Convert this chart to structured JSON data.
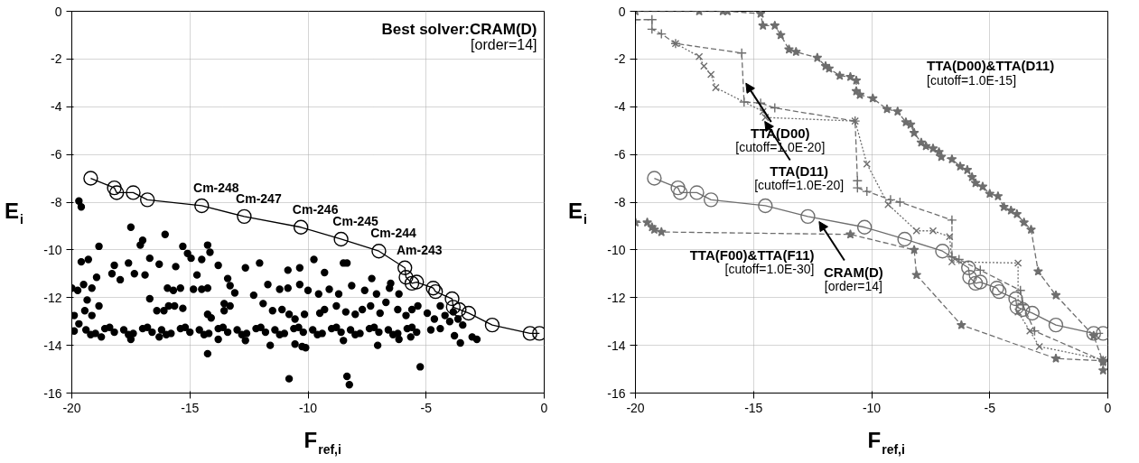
{
  "chart_data": [
    {
      "type": "scatter",
      "xlabel": "F$_{ref,i}$",
      "ylabel": "E$_{i}$",
      "xlim": [
        -20,
        0
      ],
      "ylim": [
        -16,
        0
      ],
      "xticks": [
        -20,
        -15,
        -10,
        -5,
        0
      ],
      "yticks": [
        -16,
        -14,
        -12,
        -10,
        -8,
        -6,
        -4,
        -2,
        0
      ],
      "grid": true,
      "annotations": [
        "Best solver:CRAM(D)\n[order=14]",
        {
          "text": "Cm-248",
          "x": -14.5,
          "y": -8.15
        },
        {
          "text": "Cm-247",
          "x": -12.7,
          "y": -8.6
        },
        {
          "text": "Cm-246",
          "x": -10.3,
          "y": -9.05
        },
        {
          "text": "Cm-245",
          "x": -8.6,
          "y": -9.55
        },
        {
          "text": "Cm-244",
          "x": -7.0,
          "y": -10.05
        },
        {
          "text": "Am-243",
          "x": -5.9,
          "y": -10.75
        }
      ],
      "series": [
        {
          "type": "scatter",
          "color": "#000000",
          "marker": "circle",
          "x": [
            -19.7,
            -19.6,
            -17.5,
            -16.05,
            -18.85,
            -17.0,
            -17.1,
            -15.3,
            -14.25,
            -14.15,
            -9.75,
            -8.5,
            -8.35,
            -19.6,
            -19.3,
            -18.2,
            -17.6,
            -16.7,
            -16.3,
            -15.6,
            -15.1,
            -14.95,
            -14.5,
            -13.8,
            -12.65,
            -12.05,
            -10.85,
            -10.35,
            -9.3,
            -7.3,
            -6.5,
            -20,
            -19.75,
            -19.5,
            -19.15,
            -18.95,
            -18.3,
            -17.95,
            -17.35,
            -16.9,
            -15.95,
            -15.7,
            -15.4,
            -14.7,
            -14.85,
            -14.5,
            -14.25,
            -13.4,
            -13.3,
            -13.1,
            -12.3,
            -11.7,
            -11.2,
            -10.85,
            -10.35,
            -10.0,
            -9.55,
            -9.1,
            -8.7,
            -8.15,
            -7.6,
            -7.1,
            -6.55,
            -6.15,
            -19.35,
            -18.85,
            -19.45,
            -19.15,
            -19.9,
            -19.7,
            -16.7,
            -16.4,
            -16.1,
            -15.9,
            -15.65,
            -15.3,
            -14.25,
            -14.1,
            -13.55,
            -13.3,
            -13.55,
            -11.9,
            -11.5,
            -11.1,
            -10.8,
            -10.55,
            -10.15,
            -9.5,
            -9.3,
            -8.8,
            -8.4,
            -8.0,
            -7.7,
            -7.35,
            -6.95,
            -6.7,
            -6.2,
            -5.85,
            -5.6,
            -5.35,
            -4.95,
            -4.65,
            -4.4,
            -4.2,
            -4.0,
            -3.85,
            -3.65,
            -3.45,
            -4.4,
            -4.8,
            -19.4,
            -19.0,
            -18.6,
            -18.2,
            -17.8,
            -17.4,
            -17.0,
            -16.6,
            -16.2,
            -15.8,
            -15.4,
            -15.0,
            -14.6,
            -14.2,
            -13.8,
            -13.4,
            -13.0,
            -12.6,
            -12.2,
            -11.8,
            -11.4,
            -11.0,
            -10.6,
            -10.2,
            -9.8,
            -9.4,
            -9.0,
            -8.6,
            -8.2,
            -7.8,
            -7.4,
            -7.0,
            -6.6,
            -6.2,
            -5.8,
            -5.4,
            -19.2,
            -18.4,
            -17.6,
            -16.8,
            -16.0,
            -15.2,
            -14.4,
            -13.6,
            -12.8,
            -12.0,
            -11.2,
            -10.4,
            -9.6,
            -8.8,
            -8.0,
            -7.2,
            -6.4,
            -5.6,
            -19.9,
            -18.75,
            -17.5,
            -16.3,
            -13.8,
            -12.65,
            -11.6,
            -10.55,
            -10.25,
            -10.1,
            -8.5,
            -7.05,
            -6.15,
            -5.65,
            -3.8,
            -3.55,
            -3.05,
            -2.85,
            -14.25,
            -10.8,
            -8.35,
            -8.25,
            -5.25
          ],
          "values": [
            -7.95,
            -8.2,
            -9.05,
            -9.35,
            -9.85,
            -9.6,
            -9.8,
            -9.85,
            -9.8,
            -10.1,
            -10.4,
            -10.55,
            -10.55,
            -10.5,
            -10.4,
            -10.65,
            -10.55,
            -10.35,
            -10.6,
            -10.7,
            -10.15,
            -10.35,
            -10.4,
            -10.65,
            -10.75,
            -10.55,
            -10.85,
            -10.75,
            -10.95,
            -11.2,
            -11.4,
            -11.6,
            -11.7,
            -11.45,
            -11.6,
            -11.15,
            -11.0,
            -11.25,
            -11.0,
            -11.05,
            -11.6,
            -11.7,
            -11.6,
            -11.05,
            -11.65,
            -11.65,
            -11.6,
            -11.2,
            -11.5,
            -11.8,
            -11.9,
            -11.45,
            -11.65,
            -11.6,
            -11.45,
            -11.7,
            -11.85,
            -11.65,
            -11.85,
            -11.5,
            -11.7,
            -11.85,
            -11.6,
            -11.85,
            -12.1,
            -12.35,
            -12.55,
            -12.75,
            -12.75,
            -13.1,
            -12.05,
            -12.55,
            -12.55,
            -12.35,
            -12.35,
            -12.45,
            -12.7,
            -12.85,
            -12.25,
            -12.35,
            -12.55,
            -12.25,
            -12.55,
            -12.5,
            -12.7,
            -12.9,
            -12.7,
            -12.65,
            -12.5,
            -12.35,
            -12.6,
            -12.7,
            -12.5,
            -12.35,
            -12.65,
            -12.2,
            -12.5,
            -12.75,
            -12.5,
            -12.35,
            -12.65,
            -12.9,
            -12.35,
            -12.75,
            -13.0,
            -12.6,
            -12.9,
            -13.15,
            -13.3,
            -13.35,
            -13.35,
            -13.5,
            -13.3,
            -13.45,
            -13.35,
            -13.5,
            -13.3,
            -13.45,
            -13.35,
            -13.5,
            -13.3,
            -13.45,
            -13.35,
            -13.5,
            -13.3,
            -13.45,
            -13.35,
            -13.5,
            -13.3,
            -13.45,
            -13.35,
            -13.5,
            -13.3,
            -13.45,
            -13.35,
            -13.5,
            -13.3,
            -13.45,
            -13.35,
            -13.5,
            -13.3,
            -13.45,
            -13.35,
            -13.5,
            -13.3,
            -13.45,
            -13.55,
            -13.25,
            -13.55,
            -13.25,
            -13.55,
            -13.25,
            -13.55,
            -13.25,
            -13.55,
            -13.25,
            -13.55,
            -13.25,
            -13.55,
            -13.25,
            -13.55,
            -13.25,
            -13.55,
            -13.25,
            -13.4,
            -13.65,
            -13.75,
            -13.65,
            -13.75,
            -13.8,
            -14.0,
            -13.95,
            -14.05,
            -14.1,
            -13.8,
            -14.0,
            -13.75,
            -13.65,
            -13.6,
            -13.9,
            -13.65,
            -13.75,
            -14.35,
            -15.4,
            -15.3,
            -15.65,
            -14.9
          ]
        },
        {
          "type": "line",
          "color": "#000000",
          "marker": "circle",
          "line_style": "solid",
          "x": [
            -19.2,
            -18.2,
            -18.1,
            -17.4,
            -16.8,
            -14.5,
            -12.7,
            -10.3,
            -8.6,
            -7.0,
            -5.9,
            -5.85,
            -5.6,
            -5.4,
            -4.7,
            -4.6,
            -3.9,
            -3.85,
            -3.6,
            -3.2,
            -2.2,
            -0.6,
            -0.2
          ],
          "values": [
            -7.0,
            -7.4,
            -7.6,
            -7.6,
            -7.9,
            -8.15,
            -8.6,
            -9.05,
            -9.55,
            -10.05,
            -10.75,
            -11.15,
            -11.4,
            -11.35,
            -11.6,
            -11.75,
            -12.05,
            -12.4,
            -12.5,
            -12.65,
            -13.15,
            -13.5,
            -13.5
          ]
        }
      ]
    },
    {
      "type": "line",
      "xlabel": "F$_{ref,i}$",
      "ylabel": "E$_{i}$",
      "xlim": [
        -20,
        0
      ],
      "ylim": [
        -16,
        0
      ],
      "xticks": [
        -20,
        -15,
        -10,
        -5,
        0
      ],
      "yticks": [
        -16,
        -14,
        -12,
        -10,
        -8,
        -6,
        -4,
        -2,
        0
      ],
      "grid": true,
      "annotations": [
        {
          "text": "TTA(D00)\n[cutoff=1.0E-20]",
          "x": -15.4,
          "y": -2.9
        },
        {
          "text": "TTA(D11)\n[cutoff=1.0E-20]",
          "x": -14.6,
          "y": -4.5
        },
        {
          "text": "CRAM(D)\n[order=14]",
          "x": -12.3,
          "y": -8.7
        }
      ],
      "series": [
        {
          "name": "TTA(D00)&TTA(D11)\n[cutoff=1.0E-15]",
          "color": "#6e6e6e",
          "marker": "star",
          "line_style": "dashed",
          "x": [
            -20,
            -17.3,
            -16.3,
            -16.1,
            -14.7,
            -14.6,
            -14.1,
            -13.85,
            -13.5,
            -13.2,
            -12.3,
            -11.95,
            -11.8,
            -11.35,
            -10.9,
            -10.65,
            -10.65,
            -10.5,
            -9.95,
            -9.35,
            -8.9,
            -8.55,
            -8.35,
            -8.2,
            -7.9,
            -7.7,
            -7.4,
            -7.15,
            -7.05,
            -6.6,
            -6.25,
            -5.95,
            -5.75,
            -5.6,
            -5.3,
            -5.0,
            -4.65,
            -4.4,
            -4.1,
            -3.85,
            -3.55,
            -3.25,
            -2.95,
            -2.2,
            -0.6,
            -0.2,
            -0.2
          ],
          "values": [
            0,
            0,
            0,
            0,
            -0.1,
            -0.6,
            -0.6,
            -1.0,
            -1.6,
            -1.7,
            -1.95,
            -2.3,
            -2.4,
            -2.7,
            -2.75,
            -2.9,
            -3.35,
            -3.5,
            -3.65,
            -4.1,
            -4.2,
            -4.65,
            -4.75,
            -5.1,
            -5.5,
            -5.65,
            -5.75,
            -5.9,
            -6.1,
            -6.2,
            -6.5,
            -6.65,
            -6.95,
            -7.2,
            -7.35,
            -7.65,
            -7.75,
            -8.2,
            -8.35,
            -8.5,
            -8.85,
            -9.15,
            -10.9,
            -11.9,
            -13.6,
            -14.7,
            -15.05
          ]
        },
        {
          "color": "#6e6e6e",
          "marker": "cross",
          "line_style": "dashed",
          "x": [
            -20,
            -19.3,
            -19.3,
            -18.9,
            -18.3,
            -15.5,
            -15.4,
            -14.7,
            -14.1,
            -10.7,
            -10.6,
            -10.6,
            -10.2,
            -9.2,
            -8.8,
            -6.6,
            -6.6,
            -6.3,
            -5.4,
            -3.7,
            -3.6,
            -3.1,
            -0.2
          ],
          "values": [
            -0.35,
            -0.35,
            -0.75,
            -0.95,
            -1.35,
            -1.75,
            -3.8,
            -3.85,
            -4.05,
            -4.6,
            -7.1,
            -7.4,
            -7.55,
            -7.9,
            -8.0,
            -8.75,
            -10.3,
            -10.4,
            -10.85,
            -11.7,
            -12.3,
            -13.4,
            -14.65
          ]
        },
        {
          "color": "#6e6e6e",
          "marker": "x",
          "line_style": "dotted",
          "x": [
            -18.3,
            -17.3,
            -17.1,
            -16.8,
            -16.6,
            -14.6,
            -14.5,
            -10.7,
            -10.2,
            -9.3,
            -8.1,
            -7.4,
            -6.7,
            -6.6,
            -3.8,
            -3.8,
            -3.3,
            -2.9,
            -0.2
          ],
          "values": [
            -1.35,
            -1.9,
            -2.3,
            -2.65,
            -3.2,
            -4.2,
            -4.45,
            -4.6,
            -6.4,
            -8.1,
            -9.2,
            -9.2,
            -9.45,
            -10.5,
            -10.55,
            -12.6,
            -13.4,
            -14.05,
            -14.6
          ]
        },
        {
          "name": "TTA(F00)&TTA(F11)\n[cutoff=1.0E-30]",
          "color": "#6e6e6e",
          "marker": "star",
          "line_style": "dashed",
          "x": [
            -20,
            -19.5,
            -19.3,
            -19.2,
            -18.9,
            -10.9,
            -8.2,
            -8.1,
            -6.2,
            -2.2,
            -0.2
          ],
          "values": [
            -8.85,
            -8.85,
            -9.05,
            -9.15,
            -9.25,
            -9.35,
            -10.0,
            -11.05,
            -13.15,
            -14.55,
            -14.65
          ]
        },
        {
          "color": "#6e6e6e",
          "marker": "circle",
          "line_style": "solid",
          "x": [
            -19.2,
            -18.2,
            -18.1,
            -17.4,
            -16.8,
            -14.5,
            -12.7,
            -10.3,
            -8.6,
            -7.0,
            -5.9,
            -5.85,
            -5.6,
            -5.4,
            -4.7,
            -4.6,
            -3.9,
            -3.85,
            -3.6,
            -3.2,
            -2.2,
            -0.6,
            -0.2
          ],
          "values": [
            -7.0,
            -7.4,
            -7.6,
            -7.6,
            -7.9,
            -8.15,
            -8.6,
            -9.05,
            -9.55,
            -10.05,
            -10.75,
            -11.15,
            -11.4,
            -11.35,
            -11.6,
            -11.75,
            -12.05,
            -12.4,
            -12.5,
            -12.65,
            -13.15,
            -13.5,
            -13.5
          ]
        }
      ]
    }
  ]
}
